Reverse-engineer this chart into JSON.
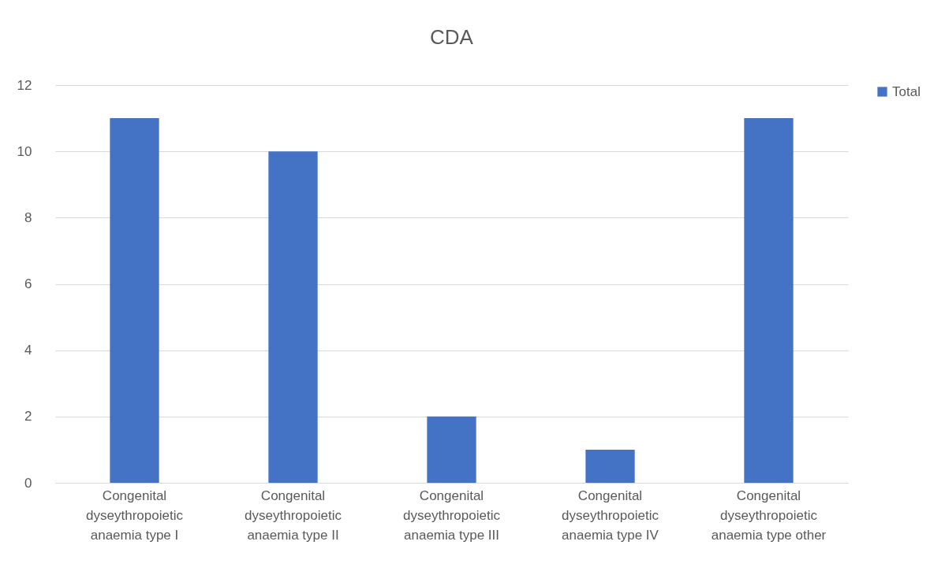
{
  "chart_data": {
    "type": "bar",
    "title": "CDA",
    "categories": [
      "Congenital dyseythropoietic anaemia type I",
      "Congenital dyseythropoietic anaemia type II",
      "Congenital dyseythropoietic anaemia type III",
      "Congenital dyseythropoietic anaemia type IV",
      "Congenital dyseythropoietic anaemia type other"
    ],
    "series": [
      {
        "name": "Total",
        "color": "#4472c4",
        "values": [
          11,
          10,
          2,
          1,
          11
        ]
      }
    ],
    "ylim": [
      0,
      12
    ],
    "yticks": [
      0,
      2,
      4,
      6,
      8,
      10,
      12
    ],
    "grid": "y",
    "legend": "right"
  }
}
